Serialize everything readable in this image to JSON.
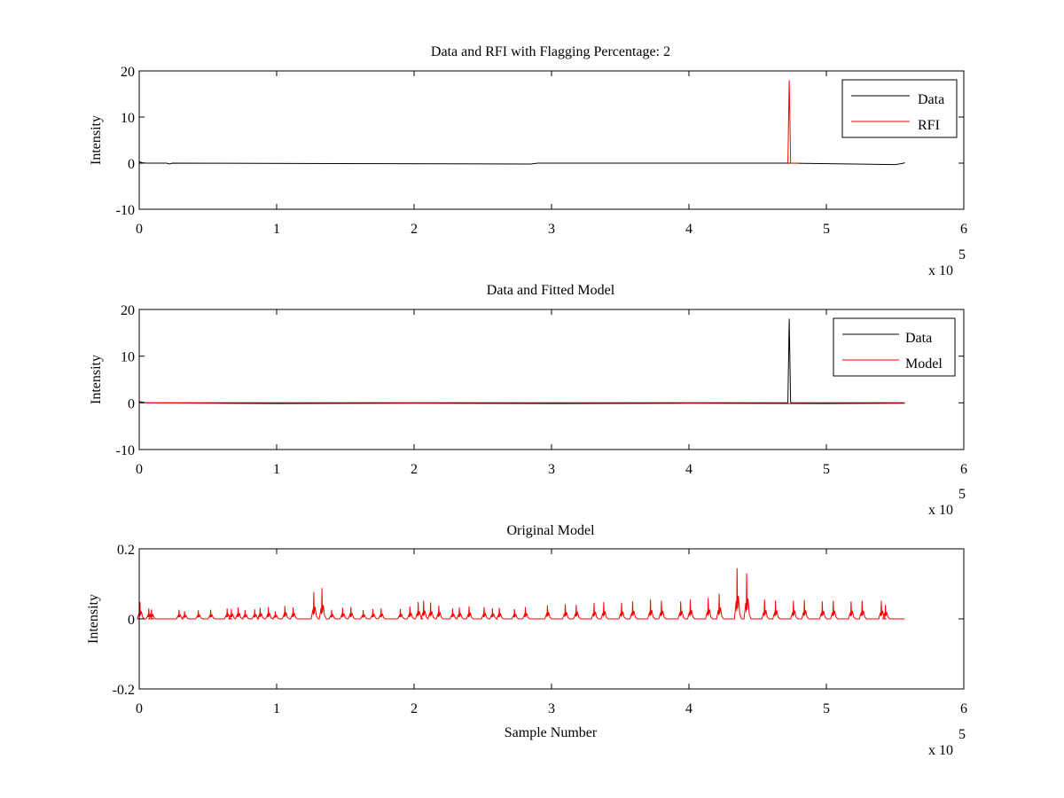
{
  "colors": {
    "data": "#000000",
    "rfi": "#ff0000",
    "model": "#ff0000",
    "axes": "#000000",
    "background": "#ffffff"
  },
  "chart_data": [
    {
      "type": "line",
      "title": "Data and RFI with Flagging Percentage: 2",
      "xlabel": "",
      "ylabel": "Intensity",
      "xlim": [
        0,
        600000
      ],
      "ylim": [
        -10,
        20
      ],
      "xticks": [
        0,
        100000,
        200000,
        300000,
        400000,
        500000,
        600000
      ],
      "xtick_labels": [
        "0",
        "1",
        "2",
        "3",
        "4",
        "5",
        "6"
      ],
      "yticks": [
        -10,
        0,
        10,
        20
      ],
      "ytick_labels": [
        "-10",
        "0",
        "10",
        "20"
      ],
      "x_exponent": {
        "base": "x 10",
        "power": "5"
      },
      "grid": false,
      "legend": {
        "position": "top-right",
        "entries": [
          "Data",
          "RFI"
        ]
      },
      "series": [
        {
          "name": "Data",
          "color": "#000000",
          "points": [
            [
              0,
              0.3
            ],
            [
              2000,
              0.1
            ],
            [
              5000,
              0
            ],
            [
              20000,
              0
            ],
            [
              22000,
              -0.2
            ],
            [
              24000,
              0
            ],
            [
              285000,
              -0.2
            ],
            [
              290000,
              0
            ],
            [
              470000,
              0
            ],
            [
              472000,
              0
            ],
            [
              550000,
              -0.3
            ],
            [
              555000,
              -0.1
            ],
            [
              557000,
              0.1
            ]
          ]
        },
        {
          "name": "RFI",
          "color": "#ff0000",
          "points": [
            [
              472000,
              0
            ],
            [
              473000,
              18
            ],
            [
              474000,
              0
            ],
            [
              480000,
              0
            ]
          ]
        }
      ]
    },
    {
      "type": "line",
      "title": "Data and Fitted Model",
      "xlabel": "",
      "ylabel": "Intensity",
      "xlim": [
        0,
        600000
      ],
      "ylim": [
        -10,
        20
      ],
      "xticks": [
        0,
        100000,
        200000,
        300000,
        400000,
        500000,
        600000
      ],
      "xtick_labels": [
        "0",
        "1",
        "2",
        "3",
        "4",
        "5",
        "6"
      ],
      "yticks": [
        -10,
        0,
        10,
        20
      ],
      "ytick_labels": [
        "-10",
        "0",
        "10",
        "20"
      ],
      "x_exponent": {
        "base": "x 10",
        "power": "5"
      },
      "grid": false,
      "legend": {
        "position": "top-right",
        "entries": [
          "Data",
          "Model"
        ]
      },
      "series": [
        {
          "name": "Data",
          "color": "#000000",
          "points": [
            [
              0,
              0.3
            ],
            [
              5000,
              0
            ],
            [
              472000,
              0
            ],
            [
              473000,
              18
            ],
            [
              474000,
              0
            ],
            [
              557000,
              0
            ]
          ]
        },
        {
          "name": "Model",
          "color": "#ff0000",
          "points": [
            [
              0,
              0.2
            ],
            [
              5000,
              0
            ],
            [
              100000,
              -0.2
            ],
            [
              200000,
              -0.1
            ],
            [
              300000,
              -0.2
            ],
            [
              400000,
              -0.1
            ],
            [
              500000,
              -0.2
            ],
            [
              557000,
              -0.1
            ]
          ]
        }
      ]
    },
    {
      "type": "line",
      "title": "Original Model",
      "xlabel": "Sample Number",
      "ylabel": "Intensity",
      "xlim": [
        0,
        600000
      ],
      "ylim": [
        -0.2,
        0.2
      ],
      "xticks": [
        0,
        100000,
        200000,
        300000,
        400000,
        500000,
        600000
      ],
      "xtick_labels": [
        "0",
        "1",
        "2",
        "3",
        "4",
        "5",
        "6"
      ],
      "yticks": [
        -0.2,
        0,
        0.2
      ],
      "ytick_labels": [
        "-0.2",
        "0",
        "0.2"
      ],
      "x_exponent": {
        "base": "x 10",
        "power": "5"
      },
      "grid": false,
      "legend": null,
      "series": [
        {
          "color": "#ff0000",
          "baseline": 0,
          "x_end": 557000,
          "peaks": [
            [
              600,
              0.048
            ],
            [
              7000,
              0.03
            ],
            [
              9000,
              0.027
            ],
            [
              29000,
              0.026
            ],
            [
              33000,
              0.022
            ],
            [
              43000,
              0.025
            ],
            [
              52000,
              0.026
            ],
            [
              64000,
              0.03
            ],
            [
              67000,
              0.028
            ],
            [
              72000,
              0.033
            ],
            [
              77000,
              0.025
            ],
            [
              84000,
              0.027
            ],
            [
              88000,
              0.032
            ],
            [
              94000,
              0.034
            ],
            [
              99000,
              0.022
            ],
            [
              106000,
              0.037
            ],
            [
              112000,
              0.033
            ],
            [
              127000,
              0.077
            ],
            [
              133000,
              0.088
            ],
            [
              140000,
              0.026
            ],
            [
              148000,
              0.032
            ],
            [
              154000,
              0.034
            ],
            [
              163000,
              0.025
            ],
            [
              170000,
              0.028
            ],
            [
              176000,
              0.03
            ],
            [
              190000,
              0.028
            ],
            [
              197000,
              0.035
            ],
            [
              203000,
              0.048
            ],
            [
              207000,
              0.052
            ],
            [
              212000,
              0.047
            ],
            [
              218000,
              0.038
            ],
            [
              228000,
              0.03
            ],
            [
              233000,
              0.033
            ],
            [
              240000,
              0.036
            ],
            [
              251000,
              0.034
            ],
            [
              257000,
              0.03
            ],
            [
              262000,
              0.032
            ],
            [
              273000,
              0.028
            ],
            [
              281000,
              0.034
            ],
            [
              297000,
              0.039
            ],
            [
              310000,
              0.042
            ],
            [
              318000,
              0.04
            ],
            [
              331000,
              0.045
            ],
            [
              338000,
              0.048
            ],
            [
              351000,
              0.046
            ],
            [
              359000,
              0.05
            ],
            [
              372000,
              0.055
            ],
            [
              380000,
              0.052
            ],
            [
              394000,
              0.05
            ],
            [
              401000,
              0.055
            ],
            [
              414000,
              0.06
            ],
            [
              422000,
              0.072
            ],
            [
              435000,
              0.145
            ],
            [
              442000,
              0.13
            ],
            [
              455000,
              0.055
            ],
            [
              463000,
              0.053
            ],
            [
              476000,
              0.052
            ],
            [
              484000,
              0.054
            ],
            [
              497000,
              0.05
            ],
            [
              505000,
              0.052
            ],
            [
              518000,
              0.05
            ],
            [
              526000,
              0.052
            ],
            [
              540000,
              0.052
            ],
            [
              543000,
              0.04
            ]
          ]
        }
      ]
    }
  ]
}
